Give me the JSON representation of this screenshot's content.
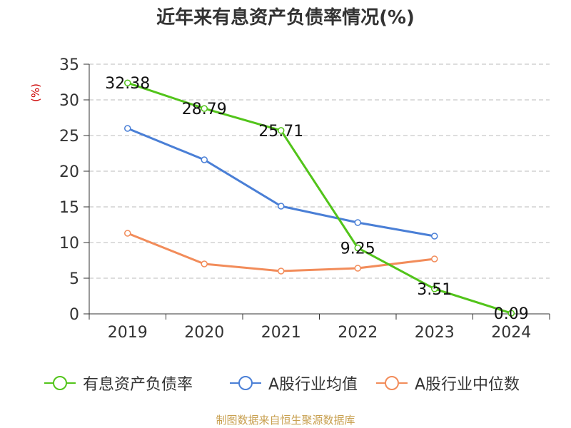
{
  "title": "近年来有息资产负债率情况(%)",
  "source_text": "制图数据来自恒生聚源数据库",
  "chart_data": {
    "type": "line",
    "title": "近年来有息资产负债率情况(%)",
    "ylabel": "(%)",
    "xlabel": "",
    "categories": [
      "2019",
      "2020",
      "2021",
      "2022",
      "2023",
      "2024"
    ],
    "ylim": [
      0,
      35
    ],
    "yticks": [
      0,
      5,
      10,
      15,
      20,
      25,
      30,
      35
    ],
    "grid": true,
    "legend_position": "bottom",
    "series": [
      {
        "name": "有息资产负债率",
        "color": "#52c41a",
        "values": [
          32.38,
          28.79,
          25.71,
          9.25,
          3.51,
          0.09
        ],
        "labels": [
          "32.38",
          "28.79",
          "25.71",
          "9.25",
          "3.51",
          "0.09"
        ]
      },
      {
        "name": "A股行业均值",
        "color": "#4a7fd6",
        "values": [
          26.0,
          21.6,
          15.1,
          12.8,
          10.9,
          null
        ]
      },
      {
        "name": "A股行业中位数",
        "color": "#f28c5a",
        "values": [
          11.3,
          7.0,
          6.0,
          6.4,
          7.7,
          null
        ]
      }
    ]
  }
}
